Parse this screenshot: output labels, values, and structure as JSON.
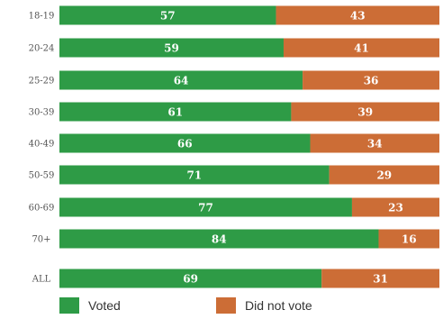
{
  "chart_data": {
    "type": "bar",
    "stacked": true,
    "orientation": "horizontal",
    "categories": [
      "18-19",
      "20-24",
      "25-29",
      "30-39",
      "40-49",
      "50-59",
      "60-69",
      "70+",
      "ALL"
    ],
    "series": [
      {
        "name": "Voted",
        "color": "#2e9b46",
        "values": [
          57,
          59,
          64,
          61,
          66,
          71,
          77,
          84,
          69
        ]
      },
      {
        "name": "Did not vote",
        "color": "#cc6d36",
        "values": [
          43,
          41,
          36,
          39,
          34,
          29,
          23,
          16,
          31
        ]
      }
    ],
    "xlim": [
      0,
      100
    ],
    "grid": false,
    "legend_position": "bottom"
  },
  "legend": {
    "voted_label": "Voted",
    "did_not_vote_label": "Did not vote",
    "voted_color": "#2e9b46",
    "did_not_vote_color": "#cc6d36"
  }
}
